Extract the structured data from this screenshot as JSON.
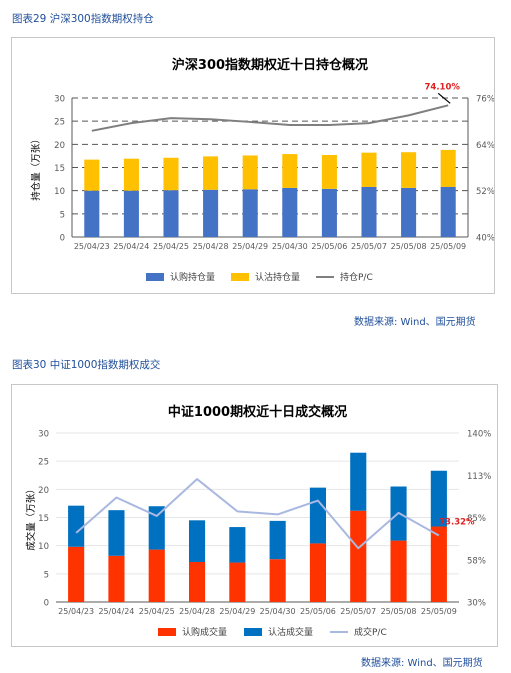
{
  "figure1": {
    "caption": "图表29 沪深300指数期权持仓",
    "source": "数据来源: Wind、国元期货",
    "chart_data": {
      "type": "bar",
      "title": "沪深300指数期权近十日持仓概况",
      "ylabel": "持仓量（万张）",
      "categories": [
        "25/04/23",
        "25/04/24",
        "25/04/25",
        "25/04/28",
        "25/04/29",
        "25/04/30",
        "25/05/06",
        "25/05/07",
        "25/05/08",
        "25/05/09"
      ],
      "ylim": [
        0,
        30
      ],
      "yticks": [
        "0",
        "5",
        "10",
        "15",
        "20",
        "25",
        "30"
      ],
      "y2lim": [
        40,
        76
      ],
      "y2ticks": [
        "40%",
        "52%",
        "64%",
        "76%"
      ],
      "grid": true,
      "legend_position": "bottom",
      "series": [
        {
          "name": "认购持仓量",
          "kind": "bar",
          "color": "#4472c4",
          "values": [
            10.0,
            10.0,
            10.1,
            10.2,
            10.3,
            10.6,
            10.4,
            10.8,
            10.6,
            10.8
          ]
        },
        {
          "name": "认沽持仓量",
          "kind": "bar",
          "color": "#ffc000",
          "values": [
            6.7,
            6.9,
            7.0,
            7.2,
            7.3,
            7.3,
            7.3,
            7.4,
            7.7,
            8.0
          ]
        },
        {
          "name": "持仓P/C",
          "kind": "line",
          "axis": "right",
          "color": "#7f7f7f",
          "values": [
            67.5,
            69.5,
            70.8,
            70.5,
            69.8,
            69.0,
            69.0,
            69.5,
            71.5,
            74.1
          ]
        }
      ],
      "annotation": "74.10%"
    }
  },
  "figure2": {
    "caption": "图表30 中证1000指数期权成交",
    "source": "数据来源: Wind、国元期货",
    "chart_data": {
      "type": "bar",
      "title": "中证1000期权近十日成交概况",
      "ylabel": "成交量（万张）",
      "categories": [
        "25/04/23",
        "25/04/24",
        "25/04/25",
        "25/04/28",
        "25/04/29",
        "25/04/30",
        "25/05/06",
        "25/05/07",
        "25/05/08",
        "25/05/09"
      ],
      "ylim": [
        0,
        30
      ],
      "yticks": [
        "0",
        "5",
        "10",
        "15",
        "20",
        "25",
        "30"
      ],
      "y2lim": [
        30,
        140
      ],
      "y2ticks": [
        "30%",
        "58%",
        "85%",
        "113%",
        "140%"
      ],
      "grid": true,
      "legend_position": "bottom",
      "series": [
        {
          "name": "认购成交量",
          "kind": "bar",
          "color": "#ff3300",
          "values": [
            9.8,
            8.2,
            9.3,
            7.1,
            7.0,
            7.6,
            10.4,
            16.2,
            10.9,
            13.4
          ]
        },
        {
          "name": "认沽成交量",
          "kind": "bar",
          "color": "#0070c0",
          "values": [
            7.3,
            8.1,
            7.7,
            7.4,
            6.3,
            6.8,
            9.9,
            10.3,
            9.6,
            9.9
          ]
        },
        {
          "name": "成交P/C",
          "kind": "line",
          "axis": "right",
          "color": "#a9b8e0",
          "values": [
            75,
            98,
            86,
            110,
            89,
            87,
            96,
            65,
            88,
            73.32
          ]
        }
      ],
      "annotation": "73.32%"
    }
  }
}
